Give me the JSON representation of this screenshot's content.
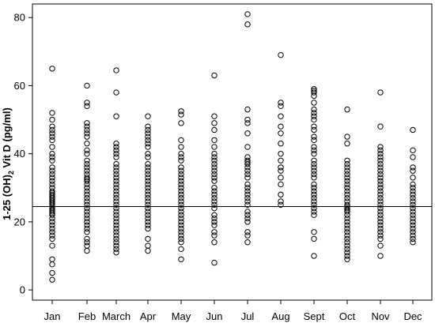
{
  "chart_data": {
    "type": "scatter",
    "title": "",
    "xlabel": "",
    "ylabel_main": "1-25 (OH)",
    "ylabel_sub": "2",
    "ylabel_tail": " Vit D (pg/ml)",
    "ylim": [
      -3,
      84
    ],
    "yticks": [
      0,
      20,
      40,
      60,
      80
    ],
    "grid": false,
    "reference_line": 24.5,
    "categories": [
      "Jan",
      "Feb",
      "March",
      "Apr",
      "May",
      "Jun",
      "Jul",
      "Aug",
      "Sept",
      "Oct",
      "Nov",
      "Dec"
    ],
    "points": [
      [
        65,
        52,
        50,
        48,
        47,
        46,
        45,
        44,
        42,
        40,
        39,
        38,
        36,
        35,
        34,
        33,
        32,
        31,
        30,
        29,
        28.5,
        28,
        27.5,
        27,
        26.5,
        26,
        25.5,
        25,
        24.5,
        24,
        23.5,
        23,
        22.5,
        22,
        21,
        20,
        19,
        18,
        17,
        16,
        15,
        13,
        9,
        7.5,
        5,
        3
      ],
      [
        60,
        55,
        54,
        49,
        48,
        47,
        46,
        45,
        43,
        41,
        40,
        38,
        37,
        36,
        35,
        34,
        33,
        32.5,
        32,
        31,
        30,
        29,
        28,
        27,
        26,
        25,
        24,
        23,
        22,
        21,
        20,
        19,
        18,
        17,
        15,
        14,
        13,
        11.5
      ],
      [
        64.5,
        58,
        51,
        43,
        42,
        41,
        40,
        39,
        37,
        36,
        35,
        34,
        33,
        32,
        31,
        30,
        29,
        28,
        27,
        26,
        25,
        24,
        23,
        22,
        21,
        20,
        19,
        18,
        17,
        16,
        15,
        14,
        13,
        12,
        11
      ],
      [
        51,
        48,
        47,
        46,
        45,
        44,
        43,
        42,
        40,
        39,
        37,
        36,
        35,
        34,
        33,
        32,
        31,
        30,
        29,
        28,
        27,
        26,
        25,
        24,
        23,
        22,
        21,
        20,
        19,
        18,
        15,
        13,
        11.5
      ],
      [
        52.5,
        51.5,
        49,
        44,
        42,
        40,
        39,
        38,
        36,
        35,
        34,
        33,
        32,
        31,
        30,
        29,
        28,
        27,
        26,
        25,
        24,
        23,
        22,
        21,
        20,
        19,
        18,
        17,
        16,
        15,
        14,
        12,
        9
      ],
      [
        63,
        51,
        49,
        47,
        44,
        42,
        40,
        39,
        38,
        37,
        36,
        35,
        34,
        33,
        32,
        30,
        29,
        28,
        27,
        26,
        25,
        24,
        22,
        21,
        20,
        19,
        17,
        16,
        14,
        8
      ],
      [
        81,
        78,
        53,
        50,
        49,
        46,
        42,
        39,
        38,
        37.5,
        37,
        36,
        35,
        34,
        33,
        31,
        30,
        29,
        28,
        27,
        26,
        25,
        23,
        22,
        21,
        20,
        17,
        16,
        14
      ],
      [
        69,
        55,
        54,
        51,
        48,
        46,
        43,
        40,
        38,
        36,
        35,
        33,
        31,
        28,
        26,
        25
      ],
      [
        59,
        58.5,
        58,
        57,
        55,
        53,
        52,
        51,
        50,
        48,
        47,
        45,
        44,
        42,
        41,
        40,
        38,
        37,
        36,
        35,
        34,
        33,
        31,
        30,
        29,
        28,
        27,
        26,
        25,
        24,
        23,
        22,
        17,
        15,
        10
      ],
      [
        53,
        45,
        43,
        38,
        37,
        36,
        35,
        34,
        33,
        32,
        31,
        30,
        29,
        28,
        27,
        26,
        25,
        24.5,
        24,
        23.5,
        23,
        22,
        21,
        20,
        19,
        18,
        17,
        16,
        15,
        14,
        13,
        12,
        11,
        10,
        9
      ],
      [
        58,
        48,
        42,
        41,
        40,
        39,
        38,
        37,
        36,
        35,
        34,
        33,
        32,
        31,
        30,
        29,
        28,
        27,
        26,
        25,
        24,
        23,
        22,
        21,
        20,
        19,
        18,
        17,
        16,
        15,
        13,
        10
      ],
      [
        47,
        41,
        39,
        36,
        35,
        33,
        31,
        30,
        29,
        28,
        27,
        26,
        25,
        24,
        23,
        22,
        21,
        20,
        19,
        18,
        17,
        16,
        15,
        14
      ]
    ]
  }
}
